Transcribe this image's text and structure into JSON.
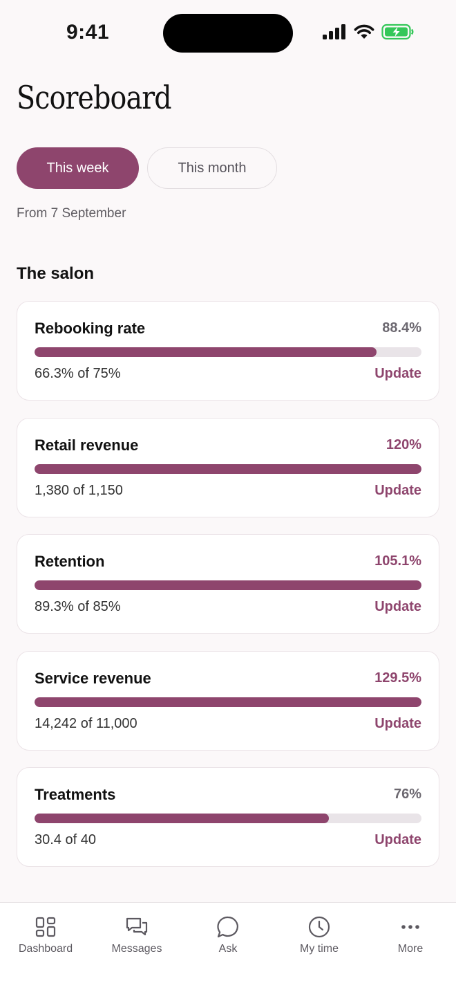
{
  "status_bar": {
    "time": "9:41"
  },
  "header": {
    "title": "Scoreboard"
  },
  "period_tabs": [
    {
      "label": "This week",
      "active": true
    },
    {
      "label": "This month",
      "active": false
    }
  ],
  "date_range": "From 7 September",
  "section": {
    "title": "The salon"
  },
  "metrics": [
    {
      "title": "Rebooking rate",
      "percent": "88.4%",
      "progress": 0.884,
      "summary": "66.3% of 75%",
      "action": "Update",
      "highlight": false
    },
    {
      "title": "Retail revenue",
      "percent": "120%",
      "progress": 1.0,
      "summary": "1,380 of 1,150",
      "action": "Update",
      "highlight": true
    },
    {
      "title": "Retention",
      "percent": "105.1%",
      "progress": 1.0,
      "summary": "89.3% of 85%",
      "action": "Update",
      "highlight": true
    },
    {
      "title": "Service revenue",
      "percent": "129.5%",
      "progress": 1.0,
      "summary": "14,242 of 11,000",
      "action": "Update",
      "highlight": true
    },
    {
      "title": "Treatments",
      "percent": "76%",
      "progress": 0.76,
      "summary": "30.4 of 40",
      "action": "Update",
      "highlight": false
    }
  ],
  "tab_bar": [
    {
      "label": "Dashboard",
      "icon": "dashboard-icon"
    },
    {
      "label": "Messages",
      "icon": "messages-icon"
    },
    {
      "label": "Ask",
      "icon": "chat-bubble-icon"
    },
    {
      "label": "My time",
      "icon": "clock-icon"
    },
    {
      "label": "More",
      "icon": "more-dots-icon"
    }
  ],
  "colors": {
    "accent": "#8e456d",
    "track": "#e9e4e8",
    "background": "#fbf8f9",
    "battery": "#34c759"
  }
}
